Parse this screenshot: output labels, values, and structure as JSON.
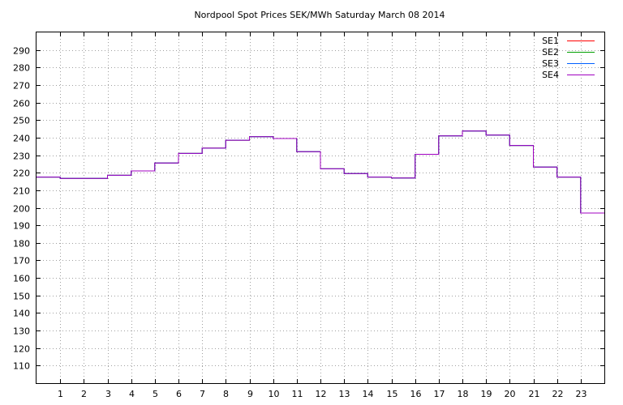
{
  "chart_data": {
    "type": "line",
    "step": true,
    "title": "Nordpool Spot Prices SEK/MWh Saturday March 08 2014",
    "xlabel": "",
    "ylabel": "",
    "xlim": [
      0,
      24
    ],
    "ylim": [
      100,
      300
    ],
    "x_ticks": [
      1,
      2,
      3,
      4,
      5,
      6,
      7,
      8,
      9,
      10,
      11,
      12,
      13,
      14,
      15,
      16,
      17,
      18,
      19,
      20,
      21,
      22,
      23
    ],
    "y_ticks": [
      110,
      120,
      130,
      140,
      150,
      160,
      170,
      180,
      190,
      200,
      210,
      220,
      230,
      240,
      250,
      260,
      270,
      280,
      290
    ],
    "grid": true,
    "legend_position": "top-right",
    "hours": [
      0,
      1,
      2,
      3,
      4,
      5,
      6,
      7,
      8,
      9,
      10,
      11,
      12,
      13,
      14,
      15,
      16,
      17,
      18,
      19,
      20,
      21,
      22,
      23
    ],
    "series": [
      {
        "name": "SE1",
        "color": "#ff0000",
        "values": [
          217.5,
          216.7,
          216.7,
          218.5,
          221.0,
          225.5,
          231.0,
          234.0,
          238.5,
          240.5,
          239.5,
          232.0,
          222.2,
          219.5,
          217.5,
          217.0,
          230.5,
          241.0,
          243.8,
          241.5,
          235.5,
          223.2,
          217.5,
          197.0
        ]
      },
      {
        "name": "SE2",
        "color": "#00a000",
        "values": [
          217.5,
          216.7,
          216.7,
          218.5,
          221.0,
          225.5,
          231.0,
          234.0,
          238.5,
          240.5,
          239.5,
          232.0,
          222.2,
          219.5,
          217.5,
          217.0,
          230.5,
          241.0,
          243.8,
          241.5,
          235.5,
          223.2,
          217.5,
          197.0
        ]
      },
      {
        "name": "SE3",
        "color": "#0060ff",
        "values": [
          217.5,
          216.7,
          216.7,
          218.5,
          221.0,
          225.5,
          231.0,
          234.0,
          238.5,
          240.5,
          239.5,
          232.0,
          222.2,
          219.5,
          217.5,
          217.0,
          230.5,
          241.0,
          243.8,
          241.5,
          235.5,
          223.2,
          217.5,
          197.0
        ]
      },
      {
        "name": "SE4",
        "color": "#a000c0",
        "values": [
          217.5,
          216.7,
          216.7,
          218.5,
          221.0,
          225.5,
          231.0,
          234.0,
          238.5,
          240.5,
          239.5,
          232.0,
          222.2,
          219.5,
          217.5,
          217.0,
          230.5,
          241.0,
          243.8,
          241.5,
          235.5,
          223.2,
          217.5,
          197.0
        ]
      }
    ]
  }
}
